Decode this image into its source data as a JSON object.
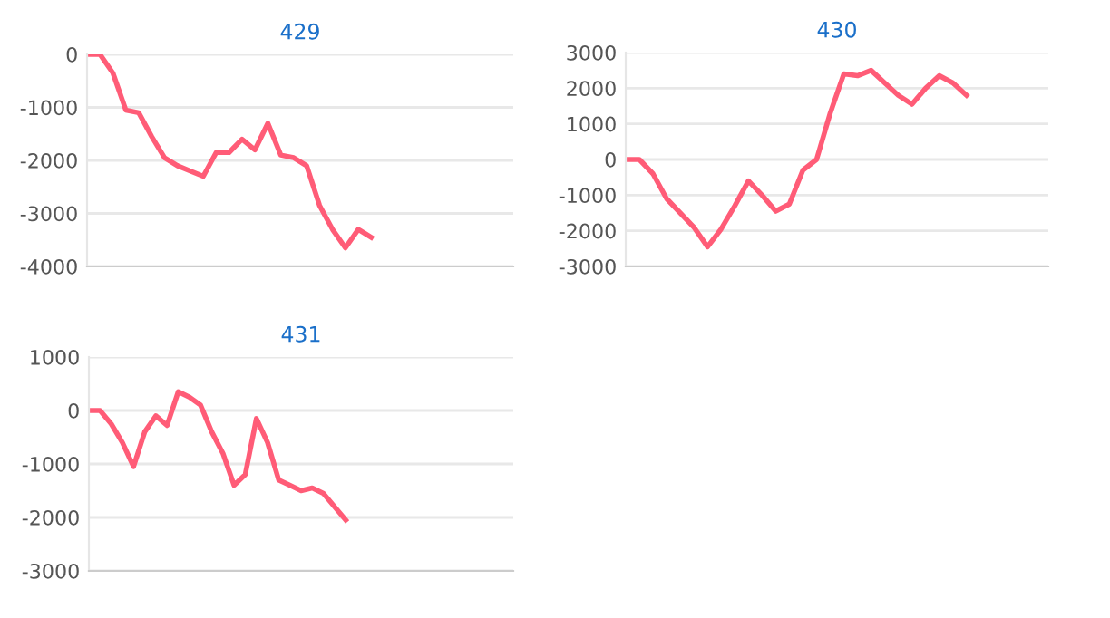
{
  "chart_data": [
    {
      "type": "line",
      "title": "429",
      "categories": [
        null,
        null,
        null,
        null,
        null,
        null,
        null,
        null,
        null,
        null,
        null,
        null,
        null,
        null,
        null,
        null,
        null,
        null,
        null,
        null,
        null,
        null,
        null,
        null,
        null,
        null,
        null,
        null,
        null,
        null,
        null,
        null,
        null,
        null
      ],
      "series": [
        {
          "color": "#ff5c77",
          "values": [
            0,
            0,
            -350,
            -1050,
            -1100,
            -1550,
            -1950,
            -2100,
            -2200,
            -2300,
            -1850,
            -1850,
            -1600,
            -1800,
            -1300,
            -1900,
            -1950,
            -2100,
            -2850,
            -3300,
            -3650,
            -3300,
            -3450,
            null,
            null,
            null,
            null,
            null,
            null,
            null,
            null,
            null,
            null,
            null
          ]
        }
      ],
      "ylim": [
        -4000,
        0
      ],
      "yticks": [
        -4000,
        -3000,
        -2000,
        -1000,
        0
      ],
      "grid": "y",
      "tick_labels": "y",
      "marker": "none",
      "line_style": "solid"
    },
    {
      "type": "line",
      "title": "430",
      "categories": [
        null,
        null,
        null,
        null,
        null,
        null,
        null,
        null,
        null,
        null,
        null,
        null,
        null,
        null,
        null,
        null,
        null,
        null,
        null,
        null,
        null,
        null,
        null,
        null,
        null,
        null,
        null,
        null,
        null,
        null,
        null,
        null
      ],
      "series": [
        {
          "color": "#ff5c77",
          "values": [
            0,
            0,
            -400,
            -1100,
            -1500,
            -1900,
            -2450,
            -1950,
            -1300,
            -600,
            -1000,
            -1450,
            -1250,
            -300,
            0,
            1300,
            2400,
            2350,
            2500,
            2150,
            1800,
            1550,
            2000,
            2350,
            2150,
            1800,
            null,
            null,
            null,
            null,
            null,
            null
          ]
        }
      ],
      "ylim": [
        -3000,
        3000
      ],
      "yticks": [
        -3000,
        -2000,
        -1000,
        0,
        1000,
        2000,
        3000
      ],
      "grid": "y",
      "tick_labels": "y",
      "marker": "none",
      "line_style": "solid"
    },
    {
      "type": "line",
      "title": "431",
      "categories": [
        null,
        null,
        null,
        null,
        null,
        null,
        null,
        null,
        null,
        null,
        null,
        null,
        null,
        null,
        null,
        null,
        null,
        null,
        null,
        null,
        null,
        null,
        null,
        null,
        null,
        null,
        null,
        null,
        null,
        null,
        null,
        null,
        null,
        null,
        null,
        null,
        null,
        null,
        null
      ],
      "series": [
        {
          "color": "#ff5c77",
          "values": [
            0,
            0,
            -250,
            -600,
            -1050,
            -400,
            -100,
            -280,
            350,
            250,
            100,
            -400,
            -800,
            -1400,
            -1200,
            -150,
            -600,
            -1300,
            -1400,
            -1500,
            -1450,
            -1550,
            -1800,
            -2050,
            null,
            null,
            null,
            null,
            null,
            null,
            null,
            null,
            null,
            null,
            null,
            null,
            null,
            null,
            null
          ]
        }
      ],
      "ylim": [
        -3000,
        1000
      ],
      "yticks": [
        -3000,
        -2000,
        -1000,
        0,
        1000
      ],
      "grid": "y",
      "tick_labels": "y",
      "marker": "none",
      "line_style": "solid"
    }
  ]
}
